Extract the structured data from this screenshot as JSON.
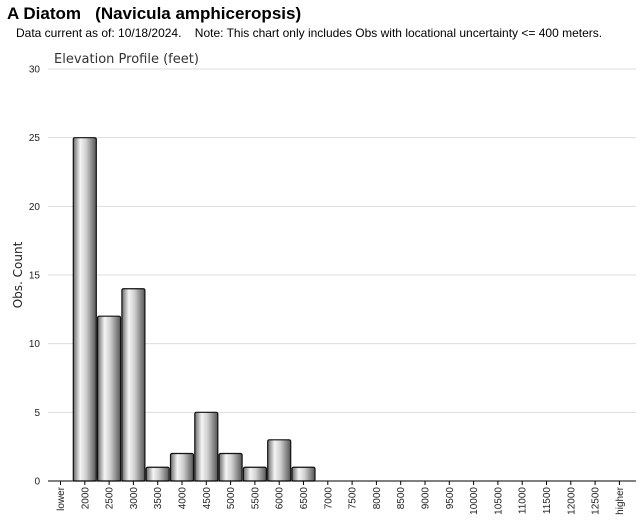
{
  "header": {
    "title": "A Diatom   (Navicula amphiceropsis)",
    "note": "Data current as of: 10/18/2024.    Note: This chart only includes Obs with locational uncertainty <= 400 meters."
  },
  "chart_data": {
    "type": "bar",
    "title": "Elevation Profile (feet)",
    "xlabel": "",
    "ylabel": "Obs. Count",
    "ylim": [
      0,
      30
    ],
    "yticks": [
      0,
      5,
      10,
      15,
      20,
      25,
      30
    ],
    "grid": true,
    "categories": [
      "lower",
      "2000",
      "2500",
      "3000",
      "3500",
      "4000",
      "4500",
      "5000",
      "5500",
      "6000",
      "6500",
      "7000",
      "7500",
      "8000",
      "8500",
      "9000",
      "9500",
      "10000",
      "10500",
      "11000",
      "11500",
      "12000",
      "12500",
      "higher"
    ],
    "values": [
      0,
      25,
      12,
      14,
      1,
      2,
      5,
      2,
      1,
      3,
      1,
      0,
      0,
      0,
      0,
      0,
      0,
      0,
      0,
      0,
      0,
      0,
      0,
      0
    ],
    "colors": {
      "bar_dark": "#5a5a5a",
      "bar_light": "#f2f2f2",
      "bar_stroke": "#111111",
      "grid": "#dddddd",
      "axis": "#000000"
    }
  }
}
